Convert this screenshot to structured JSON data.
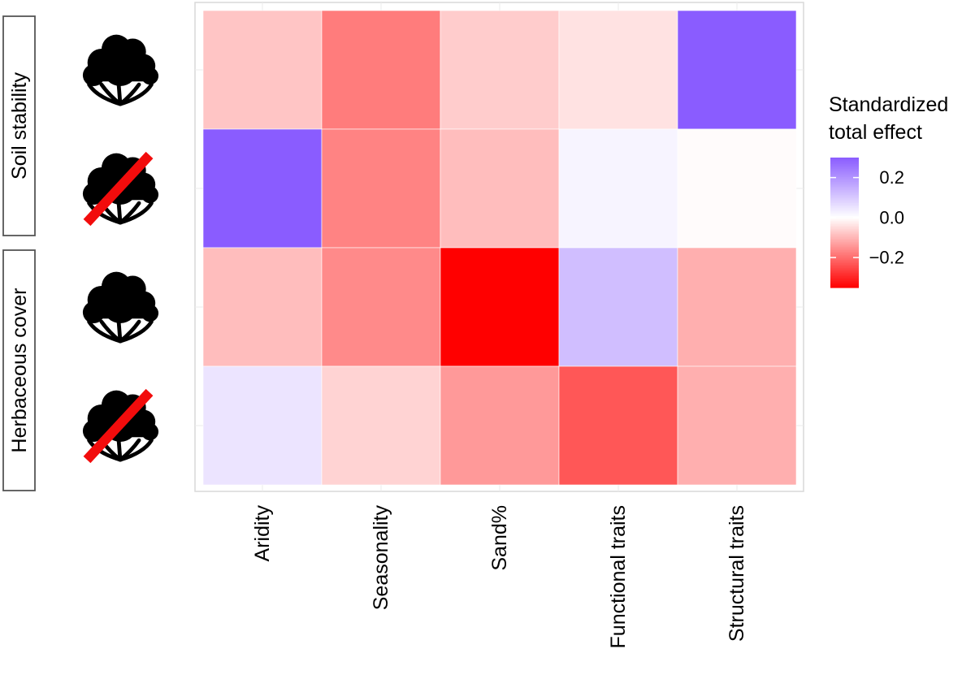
{
  "chart_data": {
    "type": "heatmap",
    "x_categories": [
      "Aridity",
      "Seasonality",
      "Sand%",
      "Functional traits",
      "Structural traits"
    ],
    "rows": [
      {
        "facet": 0,
        "icon": "shrub-icon",
        "shrub_present": true
      },
      {
        "facet": 0,
        "icon": "shrub-removed-icon",
        "shrub_present": false
      },
      {
        "facet": 1,
        "icon": "shrub-icon",
        "shrub_present": true
      },
      {
        "facet": 1,
        "icon": "shrub-removed-icon",
        "shrub_present": false
      }
    ],
    "facets": [
      "Soil stability",
      "Herbaceous cover"
    ],
    "values": [
      [
        -0.08,
        -0.18,
        -0.07,
        -0.04,
        0.3
      ],
      [
        0.3,
        -0.17,
        -0.09,
        0.02,
        -0.005
      ],
      [
        -0.09,
        -0.16,
        -0.35,
        0.12,
        -0.11
      ],
      [
        0.05,
        -0.06,
        -0.14,
        -0.23,
        -0.11
      ]
    ],
    "legend": {
      "title_lines": [
        "Standardized",
        "total effect"
      ],
      "ticks": [
        0.2,
        0.0,
        -0.2
      ],
      "tick_labels": [
        "0.2",
        "0.0",
        "−0.2"
      ],
      "range": [
        -0.35,
        0.3
      ],
      "position": "right"
    },
    "colors": {
      "high": "#8a5cff",
      "mid": "#ffffff",
      "low": "#ff0000",
      "removed_bar": "#f20c0c",
      "icon": "#000000",
      "panel_border": "#d9d9d9",
      "strip_border": "#555555"
    },
    "grid": true
  }
}
